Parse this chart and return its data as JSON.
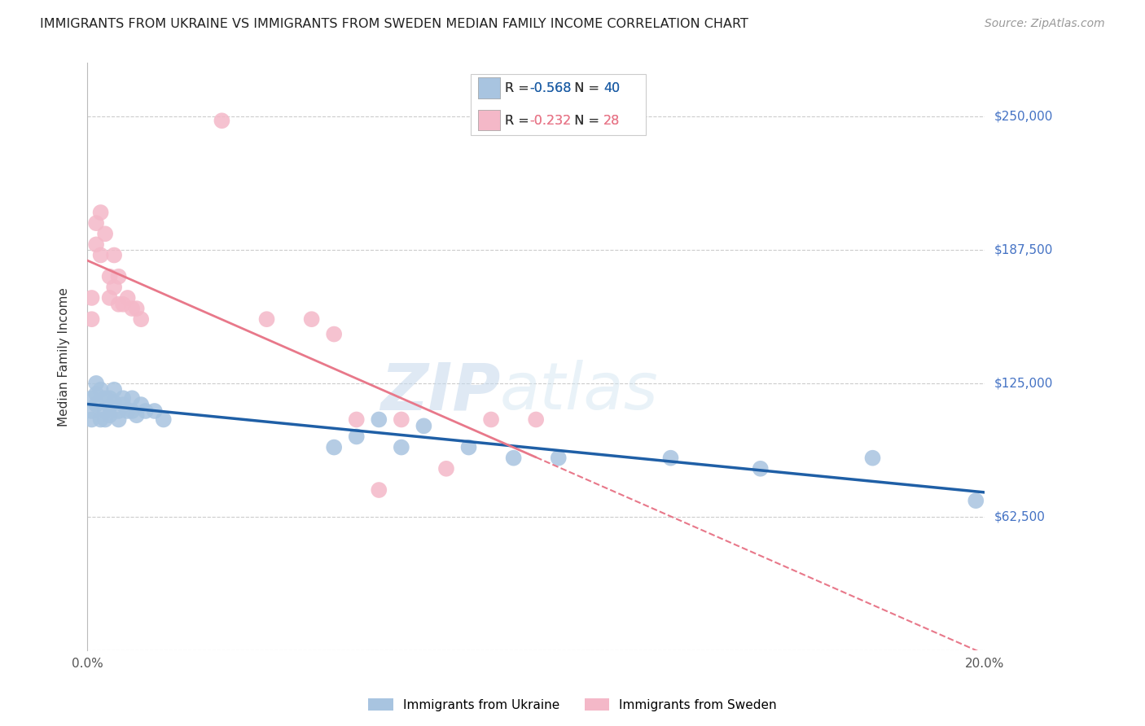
{
  "title": "IMMIGRANTS FROM UKRAINE VS IMMIGRANTS FROM SWEDEN MEDIAN FAMILY INCOME CORRELATION CHART",
  "source": "Source: ZipAtlas.com",
  "ylabel": "Median Family Income",
  "y_ticks": [
    0,
    62500,
    125000,
    187500,
    250000
  ],
  "y_tick_labels": [
    "",
    "$62,500",
    "$125,000",
    "$187,500",
    "$250,000"
  ],
  "xlim": [
    0.0,
    0.2
  ],
  "ylim": [
    0,
    275000
  ],
  "ukraine_R": -0.568,
  "ukraine_N": 40,
  "sweden_R": -0.232,
  "sweden_N": 28,
  "ukraine_color": "#a8c4e0",
  "sweden_color": "#f4b8c8",
  "ukraine_line_color": "#1f5fa6",
  "sweden_line_color": "#e8788a",
  "ukraine_x": [
    0.001,
    0.001,
    0.001,
    0.002,
    0.002,
    0.002,
    0.003,
    0.003,
    0.004,
    0.004,
    0.004,
    0.005,
    0.005,
    0.005,
    0.006,
    0.006,
    0.007,
    0.007,
    0.008,
    0.008,
    0.009,
    0.01,
    0.01,
    0.011,
    0.012,
    0.013,
    0.015,
    0.017,
    0.055,
    0.06,
    0.065,
    0.07,
    0.075,
    0.085,
    0.095,
    0.105,
    0.13,
    0.15,
    0.175,
    0.198
  ],
  "ukraine_y": [
    118000,
    112000,
    108000,
    125000,
    120000,
    115000,
    122000,
    108000,
    118000,
    112000,
    108000,
    118000,
    114000,
    110000,
    122000,
    116000,
    112000,
    108000,
    115000,
    118000,
    112000,
    118000,
    112000,
    110000,
    115000,
    112000,
    112000,
    108000,
    95000,
    100000,
    108000,
    95000,
    105000,
    95000,
    90000,
    90000,
    90000,
    85000,
    90000,
    70000
  ],
  "sweden_x": [
    0.001,
    0.001,
    0.002,
    0.002,
    0.003,
    0.003,
    0.004,
    0.005,
    0.005,
    0.006,
    0.006,
    0.007,
    0.007,
    0.008,
    0.009,
    0.01,
    0.011,
    0.012,
    0.03,
    0.04,
    0.05,
    0.055,
    0.06,
    0.065,
    0.07,
    0.08,
    0.09,
    0.1
  ],
  "sweden_y": [
    165000,
    155000,
    200000,
    190000,
    205000,
    185000,
    195000,
    175000,
    165000,
    185000,
    170000,
    175000,
    162000,
    162000,
    165000,
    160000,
    160000,
    155000,
    248000,
    155000,
    155000,
    148000,
    108000,
    75000,
    108000,
    85000,
    108000,
    108000
  ],
  "watermark_zip": "ZIP",
  "watermark_atlas": "atlas",
  "background_color": "#ffffff",
  "grid_color": "#cccccc"
}
